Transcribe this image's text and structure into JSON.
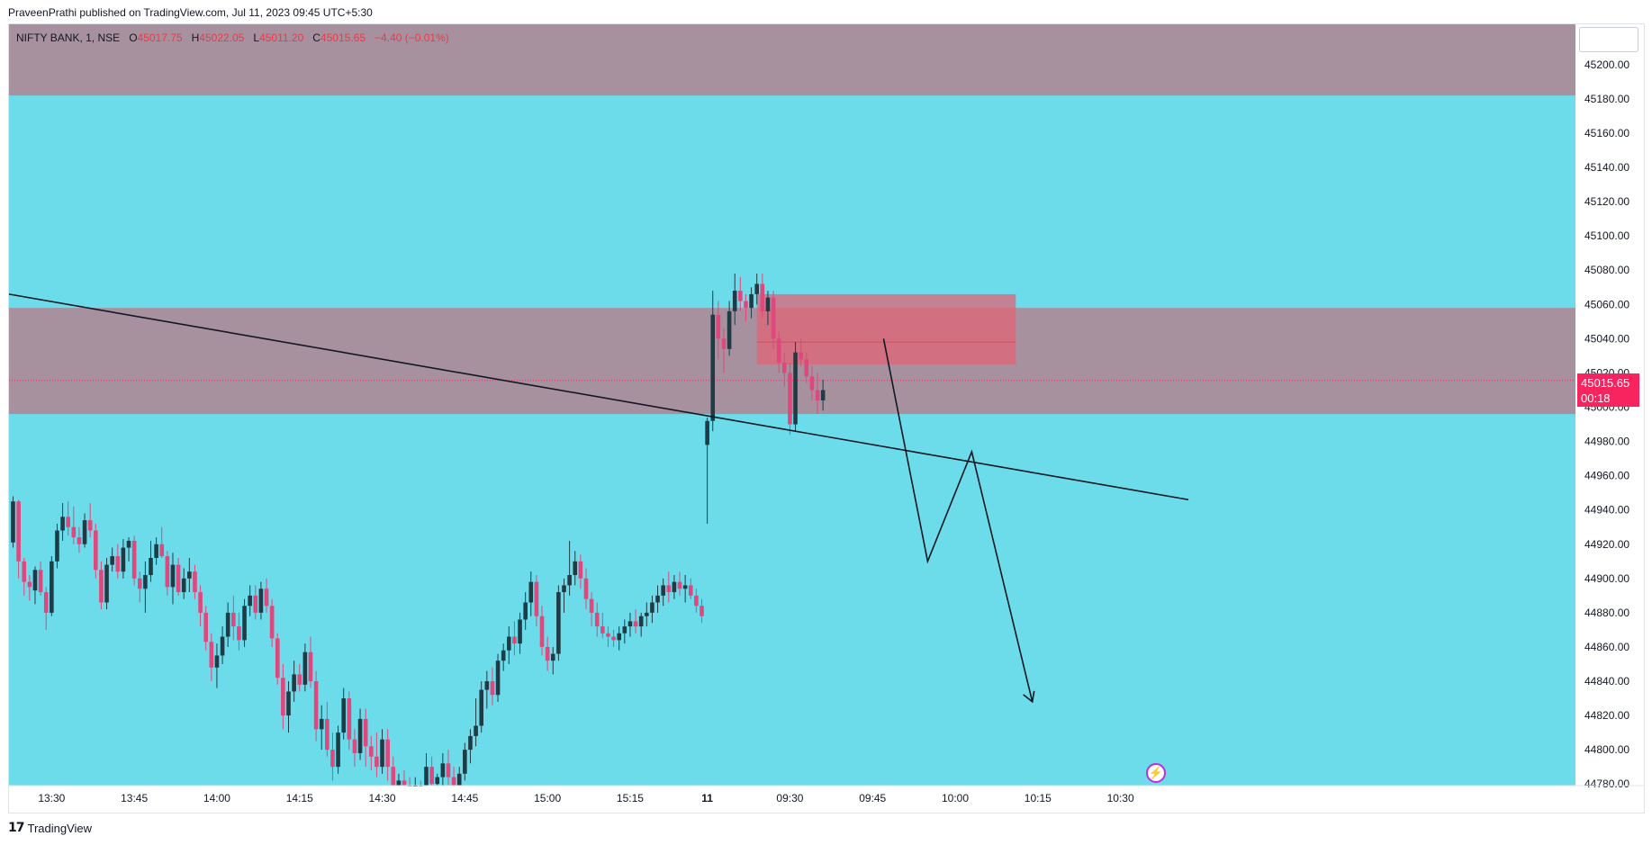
{
  "header": {
    "credit": "PraveenPrathi published on TradingView.com, Jul 11, 2023 09:45 UTC+5:30"
  },
  "legend": {
    "symbol": "NIFTY BANK, 1, NSE",
    "o_label": "O",
    "o_value": "45017.75",
    "h_label": "H",
    "h_value": "45022.05",
    "l_label": "L",
    "l_value": "45011.20",
    "c_label": "C",
    "c_value": "45015.65",
    "change": "−4.40 (−0.01%)"
  },
  "price_label": {
    "price": "45015.65",
    "timer": "00:18"
  },
  "footer": {
    "logo_text": "TradingView",
    "logo_icon": "tradingview-logo-icon"
  },
  "colors": {
    "background": "#6cdcea",
    "zone": "#a8919f",
    "order_block": "#e06476",
    "up": "#1f3c46",
    "down": "#e0477c",
    "price_line": "#f7245f"
  },
  "chart_data": {
    "type": "candlestick",
    "symbol": "NIFTY BANK",
    "timeframe": "1",
    "exchange": "NSE",
    "ylim": [
      44780,
      45220
    ],
    "y_ticks": [
      "45200.00",
      "45180.00",
      "45160.00",
      "45140.00",
      "45120.00",
      "45100.00",
      "45080.00",
      "45060.00",
      "45040.00",
      "45020.00",
      "45000.00",
      "44980.00",
      "44960.00",
      "44940.00",
      "44920.00",
      "44900.00",
      "44880.00",
      "44860.00",
      "44840.00",
      "44820.00",
      "44800.00",
      "44780.00"
    ],
    "x_ticks": [
      {
        "label": "13:30",
        "bar": 7
      },
      {
        "label": "13:45",
        "bar": 22
      },
      {
        "label": "14:00",
        "bar": 37
      },
      {
        "label": "14:15",
        "bar": 52
      },
      {
        "label": "14:30",
        "bar": 67
      },
      {
        "label": "14:45",
        "bar": 82
      },
      {
        "label": "15:00",
        "bar": 97
      },
      {
        "label": "15:15",
        "bar": 112
      },
      {
        "label": "11",
        "bar": 126,
        "bold": true
      },
      {
        "label": "09:30",
        "bar": 141
      },
      {
        "label": "09:45",
        "bar": 156
      },
      {
        "label": "10:00",
        "bar": 171
      },
      {
        "label": "10:15",
        "bar": 186
      },
      {
        "label": "10:30",
        "bar": 201
      }
    ],
    "current_price": 45015.65,
    "zones": [
      {
        "name": "supply-zone-upper",
        "from": 45182,
        "to": 45240
      },
      {
        "name": "supply-zone-lower",
        "from": 44996,
        "to": 45058
      }
    ],
    "order_block": {
      "bar_start": 135,
      "bar_end": 182,
      "from": 45025,
      "to": 45066,
      "mid": 45038
    },
    "trendline": [
      {
        "bar": 0,
        "price": 45066
      },
      {
        "bar": 213,
        "price": 44946
      }
    ],
    "projection": [
      {
        "bar": 158,
        "price": 45040
      },
      {
        "bar": 166,
        "price": 44910
      },
      {
        "bar": 174,
        "price": 44974
      },
      {
        "bar": 185,
        "price": 44828
      }
    ],
    "candles": [
      [
        44921,
        44948,
        44918,
        44945
      ],
      [
        44945,
        44946,
        44900,
        44910
      ],
      [
        44910,
        44912,
        44890,
        44898
      ],
      [
        44898,
        44902,
        44887,
        44895
      ],
      [
        44893,
        44907,
        44885,
        44905
      ],
      [
        44905,
        44910,
        44890,
        44892
      ],
      [
        44892,
        44895,
        44870,
        44880
      ],
      [
        44880,
        44913,
        44878,
        44910
      ],
      [
        44910,
        44932,
        44906,
        44928
      ],
      [
        44928,
        44944,
        44922,
        44936
      ],
      [
        44936,
        44945,
        44925,
        44930
      ],
      [
        44930,
        44942,
        44920,
        44924
      ],
      [
        44924,
        44930,
        44915,
        44920
      ],
      [
        44920,
        44938,
        44918,
        44934
      ],
      [
        44934,
        44944,
        44924,
        44928
      ],
      [
        44928,
        44932,
        44900,
        44905
      ],
      [
        44905,
        44910,
        44882,
        44886
      ],
      [
        44886,
        44912,
        44882,
        44908
      ],
      [
        44908,
        44918,
        44904,
        44913
      ],
      [
        44913,
        44920,
        44900,
        44904
      ],
      [
        44904,
        44923,
        44900,
        44918
      ],
      [
        44918,
        44924,
        44910,
        44922
      ],
      [
        44922,
        44925,
        44896,
        44900
      ],
      [
        44900,
        44904,
        44886,
        44894
      ],
      [
        44894,
        44910,
        44880,
        44902
      ],
      [
        44902,
        44922,
        44898,
        44912
      ],
      [
        44912,
        44924,
        44908,
        44920
      ],
      [
        44920,
        44930,
        44912,
        44913
      ],
      [
        44913,
        44916,
        44890,
        44895
      ],
      [
        44895,
        44915,
        44885,
        44908
      ],
      [
        44908,
        44912,
        44890,
        44892
      ],
      [
        44892,
        44906,
        44888,
        44900
      ],
      [
        44900,
        44912,
        44892,
        44904
      ],
      [
        44904,
        44908,
        44888,
        44892
      ],
      [
        44892,
        44896,
        44872,
        44880
      ],
      [
        44880,
        44884,
        44858,
        44863
      ],
      [
        44863,
        44868,
        44840,
        44848
      ],
      [
        44848,
        44862,
        44836,
        44855
      ],
      [
        44855,
        44872,
        44850,
        44866
      ],
      [
        44866,
        44886,
        44860,
        44880
      ],
      [
        44880,
        44890,
        44864,
        44872
      ],
      [
        44872,
        44880,
        44858,
        44864
      ],
      [
        44864,
        44888,
        44860,
        44884
      ],
      [
        44884,
        44896,
        44878,
        44890
      ],
      [
        44890,
        44896,
        44876,
        44880
      ],
      [
        44880,
        44898,
        44876,
        44894
      ],
      [
        44894,
        44900,
        44880,
        44884
      ],
      [
        44884,
        44888,
        44860,
        44865
      ],
      [
        44865,
        44868,
        44838,
        44842
      ],
      [
        44842,
        44850,
        44812,
        44820
      ],
      [
        44820,
        44840,
        44810,
        44834
      ],
      [
        44834,
        44852,
        44828,
        44844
      ],
      [
        44844,
        44850,
        44834,
        44838
      ],
      [
        44838,
        44862,
        44834,
        44857
      ],
      [
        44857,
        44866,
        44836,
        44840
      ],
      [
        44840,
        44846,
        44805,
        44812
      ],
      [
        44812,
        44826,
        44800,
        44818
      ],
      [
        44818,
        44828,
        44796,
        44800
      ],
      [
        44800,
        44810,
        44782,
        44790
      ],
      [
        44790,
        44814,
        44786,
        44810
      ],
      [
        44810,
        44836,
        44806,
        44830
      ],
      [
        44830,
        44834,
        44800,
        44806
      ],
      [
        44806,
        44812,
        44790,
        44798
      ],
      [
        44798,
        44824,
        44794,
        44818
      ],
      [
        44818,
        44824,
        44790,
        44802
      ],
      [
        44802,
        44808,
        44788,
        44796
      ],
      [
        44796,
        44810,
        44784,
        44790
      ],
      [
        44790,
        44812,
        44786,
        44806
      ],
      [
        44806,
        44812,
        44782,
        44790
      ],
      [
        44790,
        44796,
        44770,
        44778
      ],
      [
        44778,
        44786,
        44772,
        44782
      ],
      [
        44782,
        44788,
        44774,
        44778
      ],
      [
        44778,
        44784,
        44772,
        44776
      ],
      [
        44776,
        44784,
        44774,
        44778
      ],
      [
        44778,
        44782,
        44774,
        44777
      ],
      [
        44777,
        44798,
        44774,
        44790
      ],
      [
        44790,
        44796,
        44774,
        44780
      ],
      [
        44780,
        44786,
        44770,
        44784
      ],
      [
        44784,
        44798,
        44774,
        44792
      ],
      [
        44792,
        44800,
        44778,
        44784
      ],
      [
        44784,
        44790,
        44770,
        44778
      ],
      [
        44778,
        44790,
        44774,
        44786
      ],
      [
        44786,
        44804,
        44782,
        44800
      ],
      [
        44800,
        44812,
        44792,
        44808
      ],
      [
        44808,
        44830,
        44802,
        44814
      ],
      [
        44814,
        44840,
        44810,
        44835
      ],
      [
        44835,
        44846,
        44824,
        44840
      ],
      [
        44840,
        44848,
        44826,
        44832
      ],
      [
        44832,
        44856,
        44828,
        44852
      ],
      [
        44852,
        44862,
        44846,
        44858
      ],
      [
        44858,
        44872,
        44850,
        44866
      ],
      [
        44866,
        44875,
        44855,
        44862
      ],
      [
        44862,
        44880,
        44856,
        44876
      ],
      [
        44876,
        44892,
        44870,
        44886
      ],
      [
        44886,
        44904,
        44878,
        44898
      ],
      [
        44898,
        44902,
        44872,
        44878
      ],
      [
        44878,
        44884,
        44855,
        44860
      ],
      [
        44860,
        44866,
        44846,
        44852
      ],
      [
        44852,
        44860,
        44844,
        44856
      ],
      [
        44856,
        44896,
        44852,
        44892
      ],
      [
        44892,
        44900,
        44880,
        44896
      ],
      [
        44896,
        44922,
        44890,
        44902
      ],
      [
        44902,
        44916,
        44896,
        44910
      ],
      [
        44910,
        44914,
        44894,
        44900
      ],
      [
        44900,
        44906,
        44882,
        44888
      ],
      [
        44888,
        44892,
        44872,
        44880
      ],
      [
        44880,
        44886,
        44866,
        44872
      ],
      [
        44872,
        44880,
        44865,
        44868
      ],
      [
        44868,
        44872,
        44860,
        44866
      ],
      [
        44866,
        44870,
        44860,
        44864
      ],
      [
        44864,
        44872,
        44858,
        44868
      ],
      [
        44868,
        44876,
        44862,
        44872
      ],
      [
        44872,
        44880,
        44866,
        44875
      ],
      [
        44875,
        44882,
        44868,
        44872
      ],
      [
        44872,
        44880,
        44866,
        44878
      ],
      [
        44878,
        44886,
        44872,
        44880
      ],
      [
        44880,
        44890,
        44874,
        44886
      ],
      [
        44886,
        44896,
        44880,
        44890
      ],
      [
        44890,
        44900,
        44884,
        44896
      ],
      [
        44896,
        44904,
        44886,
        44892
      ],
      [
        44892,
        44902,
        44888,
        44898
      ],
      [
        44898,
        44904,
        44890,
        44894
      ],
      [
        44894,
        44902,
        44886,
        44896
      ],
      [
        44896,
        44900,
        44888,
        44890
      ],
      [
        44890,
        44894,
        44880,
        44884
      ],
      [
        44884,
        44888,
        44874,
        44878
      ],
      [
        44978,
        44994,
        44932,
        44992
      ],
      [
        44992,
        45068,
        44986,
        45054
      ],
      [
        45054,
        45062,
        45028,
        45040
      ],
      [
        45040,
        45046,
        45020,
        45034
      ],
      [
        45034,
        45062,
        45030,
        45056
      ],
      [
        45056,
        45078,
        45048,
        45068
      ],
      [
        45068,
        45076,
        45056,
        45062
      ],
      [
        45062,
        45066,
        45050,
        45058
      ],
      [
        45058,
        45070,
        45052,
        45066
      ],
      [
        45066,
        45078,
        45060,
        45072
      ],
      [
        45072,
        45078,
        45052,
        45056
      ],
      [
        45056,
        45068,
        45048,
        45064
      ],
      [
        45064,
        45068,
        45034,
        45040
      ],
      [
        45040,
        45044,
        45020,
        45026
      ],
      [
        45026,
        45032,
        45012,
        45020
      ],
      [
        45020,
        45026,
        44984,
        44990
      ],
      [
        44990,
        45038,
        44986,
        45032
      ],
      [
        45032,
        45040,
        45024,
        45028
      ],
      [
        45028,
        45032,
        45014,
        45018
      ],
      [
        45018,
        45024,
        45004,
        45010
      ],
      [
        45010,
        45020,
        44996,
        45004
      ],
      [
        45004,
        45016,
        44998,
        45010
      ]
    ]
  }
}
